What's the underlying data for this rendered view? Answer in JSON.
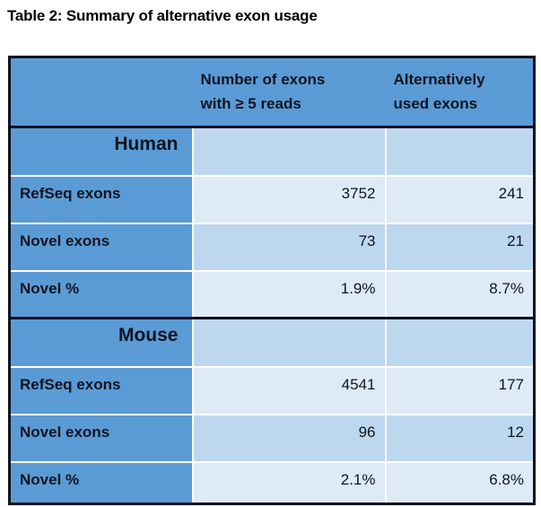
{
  "title": "Table 2: Summary of alternative exon usage",
  "table": {
    "column_headers": {
      "row_label": "",
      "exons_5reads_lines": [
        "Number of exons",
        "with ≥ 5 reads"
      ],
      "alt_used_lines": [
        "Alternatively",
        "used exons"
      ]
    },
    "sections": [
      {
        "name": "Human",
        "rows": [
          {
            "label": "RefSeq exons",
            "exons": "3752",
            "alt": "241"
          },
          {
            "label": "Novel exons",
            "exons": "73",
            "alt": "21"
          },
          {
            "label": "Novel %",
            "exons": "1.9%",
            "alt": "8.7%"
          }
        ]
      },
      {
        "name": "Mouse",
        "rows": [
          {
            "label": "RefSeq exons",
            "exons": "4541",
            "alt": "177"
          },
          {
            "label": "Novel exons",
            "exons": "96",
            "alt": "12"
          },
          {
            "label": "Novel %",
            "exons": "2.1%",
            "alt": "6.8%"
          }
        ]
      }
    ]
  },
  "colors": {
    "accent_blue": "#5b9bd5",
    "light_blue": "#bdd7ee",
    "lighter_blue": "#deeaf6",
    "border_dark": "#0d1220",
    "text_dark": "#0f1420",
    "divider_white": "#ffffff",
    "page_background": "#ffffff"
  }
}
